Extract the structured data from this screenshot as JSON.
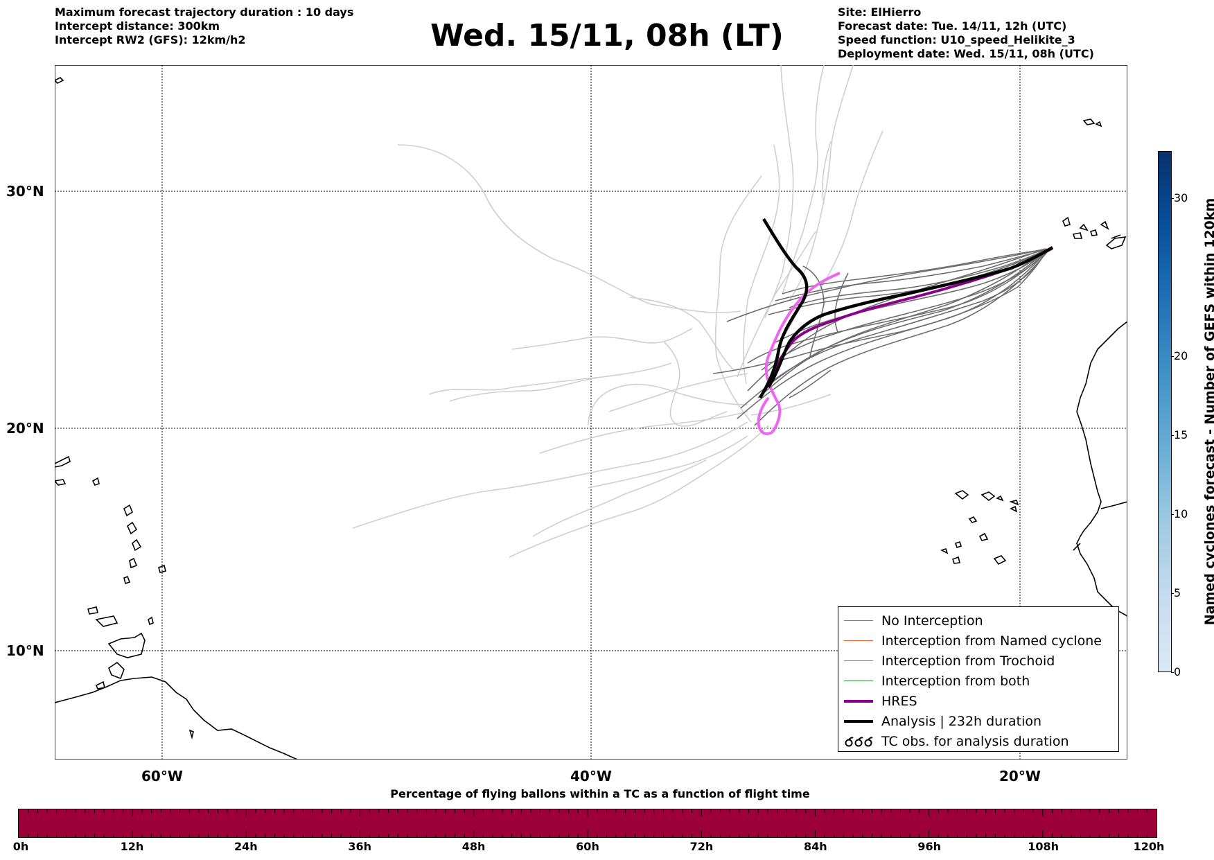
{
  "header": {
    "left_lines": [
      "Maximum forecast trajectory duration : 10 days",
      "Intercept distance: 300km",
      "Intercept RW2 (GFS):  12km/h2"
    ],
    "title": "Wed. 15/11, 08h (LT)",
    "right_lines": [
      "Site: ElHierro",
      "Forecast date: Tue. 14/11, 12h (UTC)",
      "Speed function: U10_speed_Helikite_3",
      "Deployment date: Wed. 15/11, 08h (UTC)"
    ]
  },
  "map": {
    "lat_labels": [
      "30°N",
      "20°N",
      "10°N"
    ],
    "lon_labels": [
      "60°W",
      "40°W",
      "20°W"
    ],
    "lat_values": [
      30,
      20,
      10
    ],
    "lon_values": [
      -60,
      -40,
      -20
    ],
    "extent": {
      "lon_min": -65,
      "lon_max": -15,
      "lat_min": 5.5,
      "lat_max": 35
    }
  },
  "legend": {
    "items": [
      {
        "label": "No Interception",
        "color": "#808080",
        "style": "thin"
      },
      {
        "label": "Interception from Named cyclone",
        "color": "#f05a1e",
        "style": "thin"
      },
      {
        "label": "Interception from Trochoid",
        "color": "#8c8c28",
        "style": "thin"
      },
      {
        "label": "Interception from both",
        "color": "#2e8b2e",
        "style": "thin"
      },
      {
        "label": "HRES",
        "color": "#8b008b",
        "style": "thick"
      },
      {
        "label": "Analysis | 232h duration",
        "color": "#000000",
        "style": "thick"
      },
      {
        "label": "TC obs. for analysis duration",
        "color": "#000000",
        "style": "symbol"
      }
    ]
  },
  "colorbar": {
    "label": "Named cyclones forecast - Number of GEFS within 120km",
    "ticks": [
      "0",
      "5",
      "10",
      "15",
      "20",
      "30"
    ],
    "tick_values": [
      0,
      5,
      10,
      15,
      20,
      30
    ],
    "max": 33,
    "colors": [
      "#dbe9f6",
      "#c6dbef",
      "#9ecae1",
      "#6baed6",
      "#4292c6",
      "#2171b5",
      "#08519c",
      "#08306b"
    ]
  },
  "time_bar": {
    "title": "Percentage of flying ballons within a TC as a function of flight time",
    "ticks": [
      "0h",
      "12h",
      "24h",
      "36h",
      "48h",
      "60h",
      "72h",
      "84h",
      "96h",
      "108h",
      "120h"
    ],
    "color": "#9d0039"
  },
  "colors": {
    "ensemble_dark": "#6e6e6e",
    "ensemble_light": "#cfcfcf",
    "hres": "#8b008b",
    "analysis": "#000000",
    "alt": "#ee66ee"
  }
}
